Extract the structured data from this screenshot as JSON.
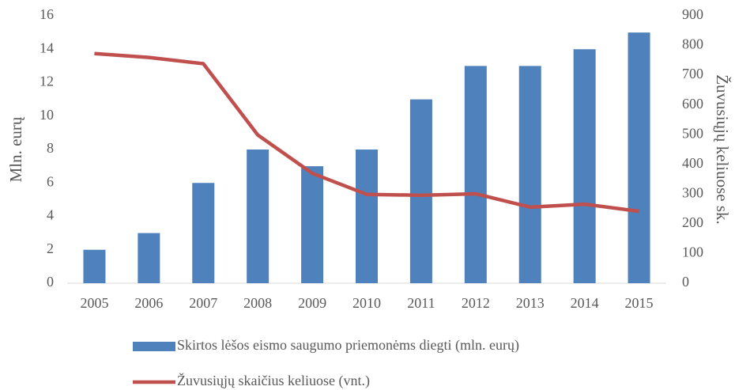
{
  "chart_data": {
    "type": "bar",
    "categories": [
      "2005",
      "2006",
      "2007",
      "2008",
      "2009",
      "2010",
      "2011",
      "2012",
      "2013",
      "2014",
      "2015"
    ],
    "series": [
      {
        "name": "Skirtos lėšos eismo saugumo priemonėms diegti (mln. eurų)",
        "color": "#4f81bd",
        "type": "bar",
        "values": [
          2,
          3,
          6,
          8,
          7,
          8,
          11,
          13,
          13,
          14,
          15
        ]
      },
      {
        "name": "Žuvusiųjų skaičius keliuose (vnt.)",
        "color": "#c0504d",
        "type": "line",
        "axis": "y2",
        "values": [
          773,
          760,
          739,
          499,
          370,
          299,
          296,
          301,
          256,
          266,
          242
        ]
      }
    ],
    "ylabel": "Mln. eurų",
    "y2label": "Žuvusiųjų keliuose sk.",
    "ylim": [
      0,
      16
    ],
    "yticks": [
      0,
      2,
      4,
      6,
      8,
      10,
      12,
      14,
      16
    ],
    "y2lim": [
      0,
      900
    ],
    "y2ticks": [
      0,
      100,
      200,
      300,
      400,
      500,
      600,
      700,
      800,
      900
    ],
    "grid": false,
    "legend": "bottom"
  }
}
